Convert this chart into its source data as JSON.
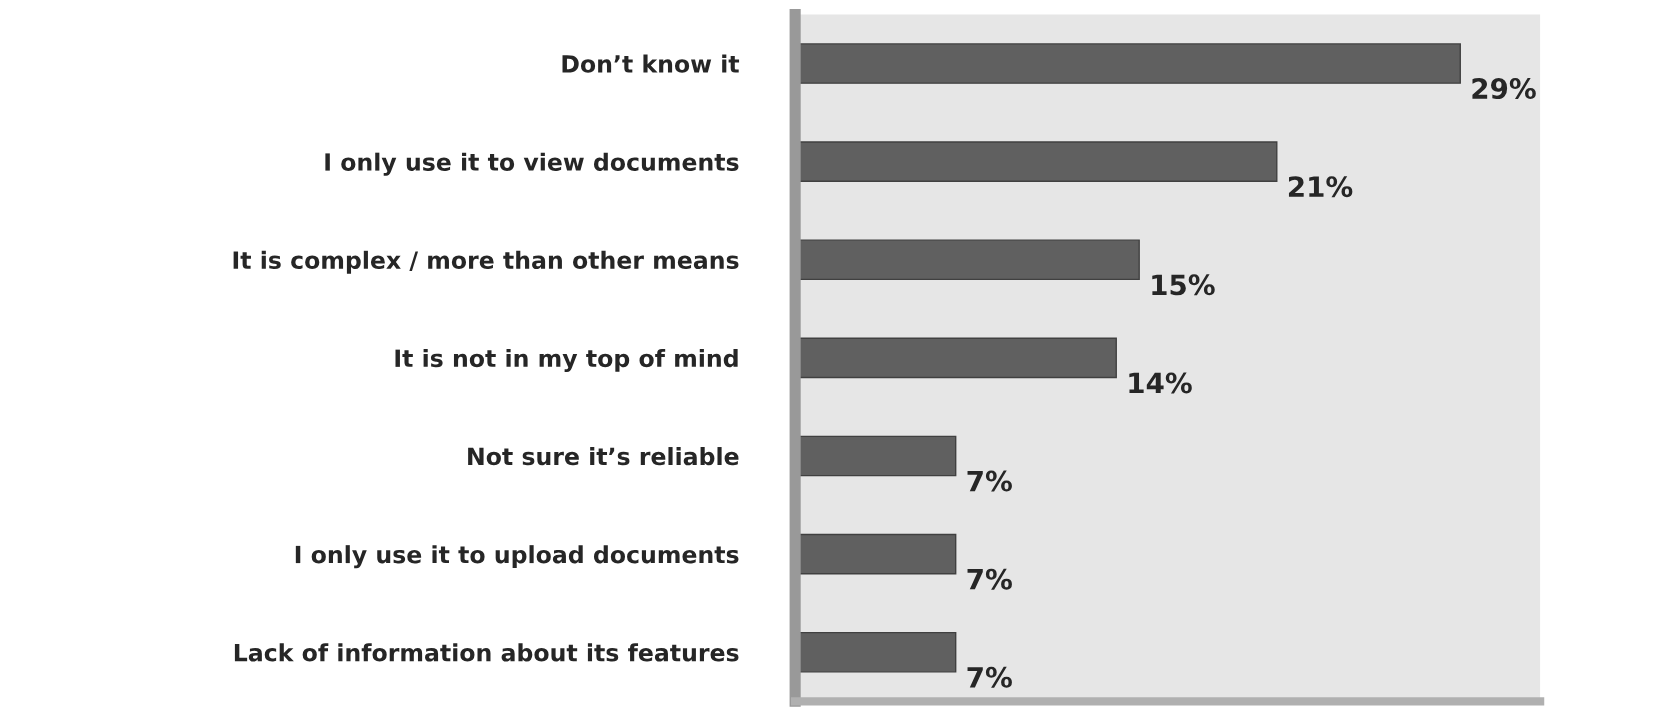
{
  "chart_data": {
    "type": "bar",
    "orientation": "horizontal",
    "categories": [
      "Don’t know it",
      "I only use it to view documents",
      "It is complex / more than other means",
      "It is not in my top of mind",
      "Not sure it’s reliable",
      "I only use it to upload documents",
      "Lack of information about its features"
    ],
    "values": [
      29,
      21,
      15,
      14,
      7,
      7,
      7
    ],
    "value_labels": [
      "29%",
      "21%",
      "15%",
      "14%",
      "7%",
      "7%",
      "7%"
    ],
    "color": "#606060",
    "grid": false,
    "legend": false
  }
}
